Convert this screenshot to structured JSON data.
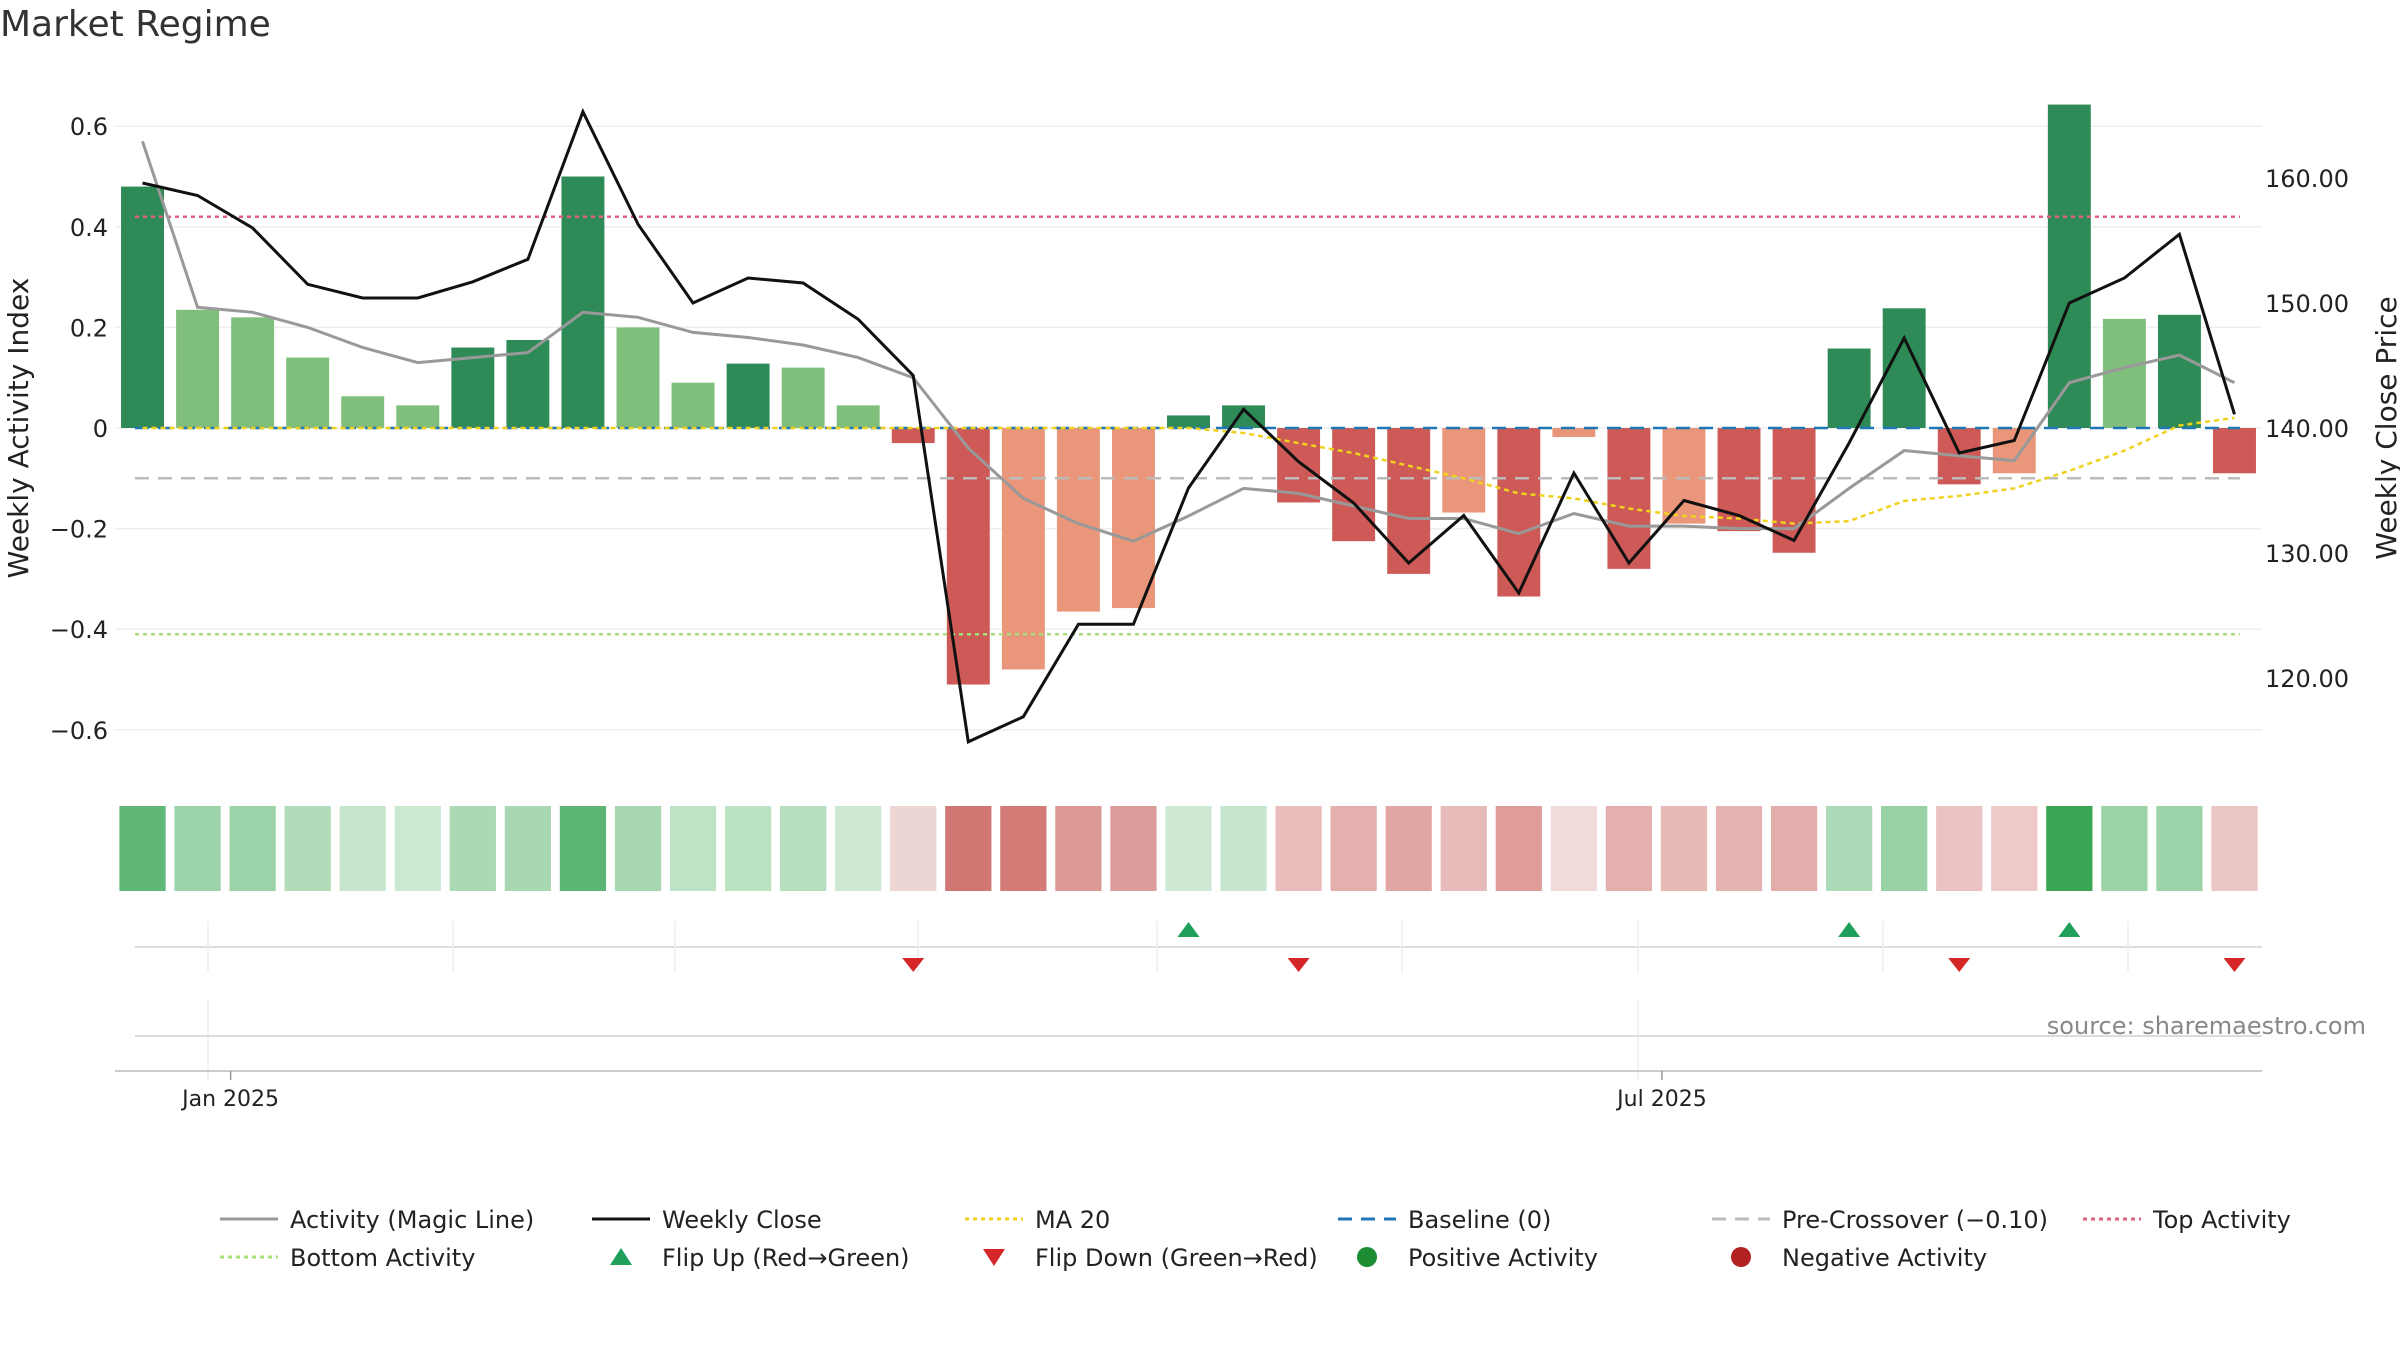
{
  "chart_data": {
    "type": "bar",
    "title": "Market Regime",
    "source": "source: sharemaestro.com",
    "ylabel_left": "Weekly Activity Index",
    "ylabel_right": "Weekly Close Price",
    "ylim_left": [
      -0.7,
      0.7
    ],
    "ylim_right": [
      113,
      170
    ],
    "yticks_left": [
      0.6,
      0.4,
      0.2,
      0,
      -0.2,
      -0.4,
      -0.6
    ],
    "ytick_labels_left": [
      "0.6",
      "0.4",
      "0.2",
      "0",
      "−0.2",
      "−0.4",
      "−0.6"
    ],
    "yticks_right": [
      160,
      150,
      140,
      130,
      120
    ],
    "ytick_labels_right": [
      "160.00",
      "150.00",
      "140.00",
      "130.00",
      "120.00"
    ],
    "x_tick_labels": [
      {
        "label": "Jan 2025",
        "week_index": 1.6
      },
      {
        "label": "Jul 2025",
        "week_index": 27.6
      }
    ],
    "week_count": 39,
    "activity": [
      0.48,
      0.235,
      0.22,
      0.14,
      0.063,
      0.045,
      0.16,
      0.175,
      0.5,
      0.2,
      0.09,
      0.128,
      0.12,
      0.045,
      -0.03,
      -0.51,
      -0.48,
      -0.365,
      -0.358,
      0.025,
      0.045,
      -0.148,
      -0.225,
      -0.29,
      -0.168,
      -0.335,
      -0.018,
      -0.28,
      -0.19,
      -0.205,
      -0.248,
      0.158,
      0.238,
      -0.112,
      -0.09,
      0.643,
      0.217,
      0.225,
      -0.09
    ],
    "bar_colors": [
      "#2e8b57",
      "#7fbf7b",
      "#7fbf7b",
      "#7fbf7b",
      "#7fbf7b",
      "#7fbf7b",
      "#2e8b57",
      "#2e8b57",
      "#2e8b57",
      "#7fbf7b",
      "#7fbf7b",
      "#2e8b57",
      "#7fbf7b",
      "#7fbf7b",
      "#cd5a56",
      "#cd5a56",
      "#e9967a",
      "#e9967a",
      "#e9967a",
      "#2e8b57",
      "#2e8b57",
      "#cd5a56",
      "#cd5a56",
      "#cd5a56",
      "#e9967a",
      "#cd5a56",
      "#e9967a",
      "#cd5a56",
      "#e9967a",
      "#cd5a56",
      "#cd5a56",
      "#2e8b57",
      "#2e8b57",
      "#cd5a56",
      "#e9967a",
      "#2e8b57",
      "#7fbf7b",
      "#2e8b57",
      "#cd5a56"
    ],
    "heat_colors": [
      "#5fb878",
      "#9cd3a8",
      "#9cd3a8",
      "#b1dcb9",
      "#c6e6cd",
      "#cbe9d1",
      "#aad9b4",
      "#a8d8b2",
      "#5cb673",
      "#a6d7b1",
      "#bfe3c7",
      "#bce2c4",
      "#b5dfbe",
      "#cde8d2",
      "#ecd5d3",
      "#d07774",
      "#d47b78",
      "#dc9996",
      "#dc9d9a",
      "#cde9d3",
      "#c6e6cd",
      "#e8bdbb",
      "#e3b0ae",
      "#e1a6a4",
      "#e7bbb9",
      "#df9d9a",
      "#f1dbda",
      "#e3b0ae",
      "#e7bab8",
      "#e5b3b1",
      "#e2aeac",
      "#aedbb7",
      "#98d1a4",
      "#eac3c2",
      "#eec9c8",
      "#38a653",
      "#9bd3a7",
      "#9cd3a8",
      "#ecc6c5"
    ],
    "magic_line": [
      0.57,
      0.24,
      0.23,
      0.2,
      0.16,
      0.13,
      0.14,
      0.15,
      0.23,
      0.22,
      0.19,
      0.18,
      0.165,
      0.14,
      0.1,
      -0.04,
      -0.14,
      -0.19,
      -0.225,
      -0.175,
      -0.12,
      -0.13,
      -0.155,
      -0.18,
      -0.18,
      -0.21,
      -0.17,
      -0.195,
      -0.195,
      -0.2,
      -0.2,
      -0.12,
      -0.045,
      -0.055,
      -0.065,
      0.09,
      0.12,
      0.145,
      0.09
    ],
    "weekly_close": [
      159.6,
      158.6,
      156.0,
      151.5,
      150.4,
      150.4,
      151.7,
      153.5,
      165.3,
      156.3,
      150.0,
      152.0,
      151.6,
      148.7,
      144.2,
      114.9,
      116.9,
      124.3,
      124.3,
      135.2,
      141.5,
      137.3,
      134.0,
      129.2,
      133.0,
      126.8,
      136.4,
      129.2,
      134.2,
      133.0,
      131.0,
      138.8,
      147.2,
      138.0,
      139.0,
      150.0,
      152.0,
      155.5,
      141.1
    ],
    "ma20": [
      0.0,
      0.0,
      0.0,
      0.0,
      0.0,
      0.0,
      0.0,
      0.0,
      0.0,
      0.0,
      0.0,
      0.0,
      0.0,
      0.0,
      0.0,
      0.0,
      0.0,
      0.0,
      0.0,
      0.0,
      -0.01,
      -0.03,
      -0.05,
      -0.075,
      -0.1,
      -0.13,
      -0.14,
      -0.16,
      -0.175,
      -0.18,
      -0.19,
      -0.185,
      -0.145,
      -0.135,
      -0.12,
      -0.085,
      -0.045,
      0.005,
      0.02
    ],
    "baseline": 0,
    "pre_crossover": -0.1,
    "top_activity": 0.42,
    "bottom_activity": -0.41,
    "flip_up_weeks": [
      19,
      31,
      35
    ],
    "flip_down_weeks": [
      14,
      21,
      33,
      38
    ],
    "colors": {
      "magic_line": "#999999",
      "weekly_close": "#111111",
      "ma20": "#f0d21e",
      "baseline": "#1f77b4",
      "pre_crossover": "#bbbbbb",
      "top_activity": "#e06080",
      "bottom_activity": "#a8e07a",
      "flip_up": "#1ea05a",
      "flip_down": "#d62728",
      "positive": "#1e8c32",
      "negative": "#b22222"
    },
    "legend": [
      {
        "label": "Activity (Magic Line)",
        "kind": "solid",
        "color": "#999999"
      },
      {
        "label": "Weekly Close",
        "kind": "solid",
        "color": "#111111"
      },
      {
        "label": "MA 20",
        "kind": "dotted",
        "color": "#f0d21e"
      },
      {
        "label": "Baseline (0)",
        "kind": "dashed",
        "color": "#1f77b4"
      },
      {
        "label": "Pre-Crossover (−0.10)",
        "kind": "dashed",
        "color": "#bbbbbb"
      },
      {
        "label": "Top Activity",
        "kind": "dotted",
        "color": "#e06080"
      },
      {
        "label": "Bottom Activity",
        "kind": "dotted",
        "color": "#a8e07a"
      },
      {
        "label": "Flip Up (Red→Green)",
        "kind": "triangle-up",
        "color": "#1ea05a"
      },
      {
        "label": "Flip Down (Green→Red)",
        "kind": "triangle-down",
        "color": "#d62728"
      },
      {
        "label": "Positive Activity",
        "kind": "circle",
        "color": "#1e8c32"
      },
      {
        "label": "Negative Activity",
        "kind": "circle",
        "color": "#b22222"
      }
    ]
  }
}
